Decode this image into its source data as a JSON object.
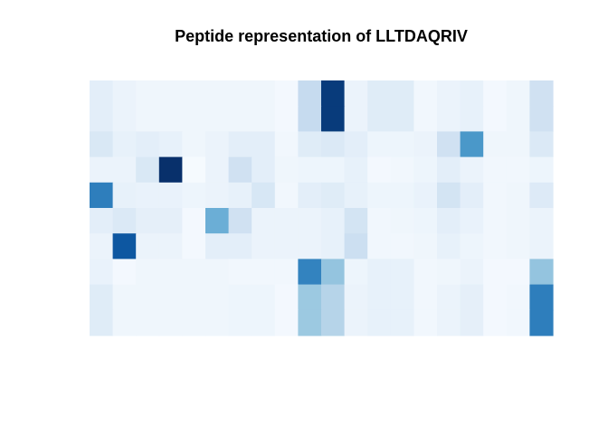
{
  "chart_data": {
    "type": "heatmap",
    "title": "Peptide representation of LLTDAQRIV",
    "xlabel": "",
    "ylabel": "",
    "grid": false,
    "legend": "none",
    "color_low": "#f7fbff",
    "color_high": "#08306b",
    "value_range": [
      0,
      1
    ],
    "n_rows": 10,
    "n_cols": 20,
    "values": [
      [
        0.1,
        0.06,
        0.04,
        0.04,
        0.04,
        0.04,
        0.04,
        0.04,
        0.02,
        0.25,
        0.96,
        0.06,
        0.12,
        0.12,
        0.03,
        0.06,
        0.08,
        0.02,
        0.04,
        0.2
      ],
      [
        0.1,
        0.06,
        0.04,
        0.04,
        0.04,
        0.04,
        0.04,
        0.04,
        0.02,
        0.25,
        0.96,
        0.06,
        0.12,
        0.12,
        0.03,
        0.06,
        0.08,
        0.02,
        0.04,
        0.2
      ],
      [
        0.15,
        0.08,
        0.1,
        0.08,
        0.04,
        0.06,
        0.1,
        0.1,
        0.03,
        0.12,
        0.14,
        0.1,
        0.05,
        0.05,
        0.06,
        0.2,
        0.6,
        0.04,
        0.04,
        0.14
      ],
      [
        0.06,
        0.06,
        0.15,
        1.0,
        0.01,
        0.06,
        0.2,
        0.1,
        0.04,
        0.05,
        0.05,
        0.08,
        0.02,
        0.03,
        0.05,
        0.1,
        0.06,
        0.03,
        0.03,
        0.05
      ],
      [
        0.7,
        0.08,
        0.07,
        0.07,
        0.05,
        0.06,
        0.08,
        0.16,
        0.03,
        0.1,
        0.12,
        0.08,
        0.05,
        0.05,
        0.07,
        0.18,
        0.1,
        0.03,
        0.04,
        0.13
      ],
      [
        0.1,
        0.14,
        0.09,
        0.09,
        0.02,
        0.5,
        0.2,
        0.06,
        0.06,
        0.06,
        0.08,
        0.18,
        0.03,
        0.04,
        0.05,
        0.1,
        0.07,
        0.03,
        0.04,
        0.06
      ],
      [
        0.06,
        0.85,
        0.06,
        0.06,
        0.02,
        0.1,
        0.1,
        0.06,
        0.06,
        0.06,
        0.08,
        0.22,
        0.03,
        0.03,
        0.04,
        0.08,
        0.05,
        0.03,
        0.04,
        0.06
      ],
      [
        0.07,
        0.02,
        0.04,
        0.04,
        0.04,
        0.04,
        0.03,
        0.03,
        0.03,
        0.68,
        0.4,
        0.05,
        0.08,
        0.08,
        0.03,
        0.04,
        0.06,
        0.02,
        0.02,
        0.4
      ],
      [
        0.12,
        0.04,
        0.04,
        0.04,
        0.04,
        0.04,
        0.05,
        0.05,
        0.02,
        0.38,
        0.3,
        0.06,
        0.08,
        0.08,
        0.03,
        0.06,
        0.09,
        0.02,
        0.03,
        0.7
      ],
      [
        0.12,
        0.04,
        0.04,
        0.04,
        0.04,
        0.04,
        0.05,
        0.05,
        0.02,
        0.38,
        0.3,
        0.06,
        0.08,
        0.08,
        0.03,
        0.06,
        0.09,
        0.02,
        0.03,
        0.7
      ]
    ]
  }
}
